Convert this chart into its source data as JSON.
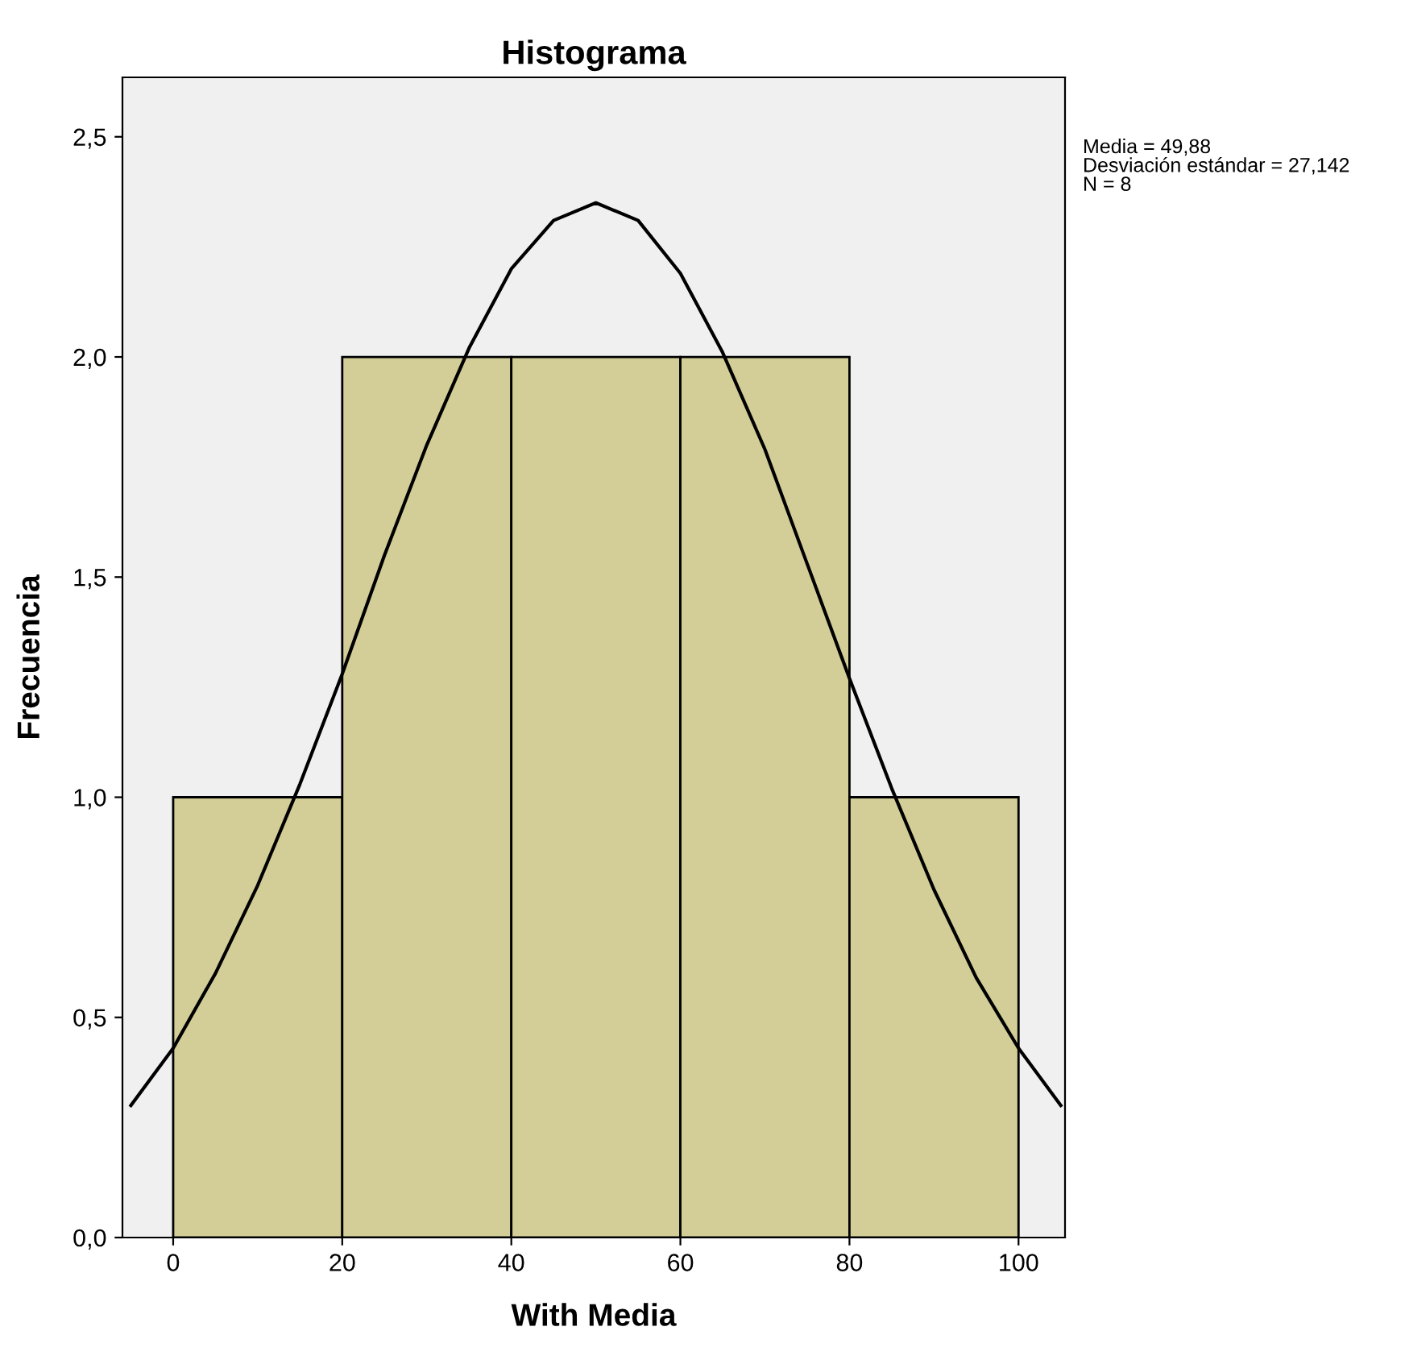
{
  "chart_data": {
    "type": "histogram",
    "title": "Histograma",
    "xlabel": "With Media",
    "ylabel": "Frecuencia",
    "bins": [
      0,
      20,
      40,
      60,
      80,
      100
    ],
    "values": [
      1,
      2,
      2,
      2,
      1
    ],
    "color": "#d3ce97",
    "series": [
      {
        "type": "line",
        "color": "#000000",
        "x": [
          -5,
          0,
          5,
          10,
          15,
          20,
          25,
          30,
          35,
          40,
          45,
          50,
          55,
          60,
          65,
          70,
          75,
          80,
          85,
          90,
          95,
          100,
          105
        ],
        "values": [
          0.3,
          0.43,
          0.6,
          0.8,
          1.03,
          1.28,
          1.55,
          1.8,
          2.02,
          2.2,
          2.31,
          2.35,
          2.31,
          2.19,
          2.01,
          1.79,
          1.53,
          1.27,
          1.02,
          0.79,
          0.59,
          0.43,
          0.3
        ]
      }
    ],
    "xlim": [
      -6,
      105.5
    ],
    "xticks": [
      0,
      20,
      40,
      60,
      80,
      100
    ],
    "ylim": [
      0,
      2.635
    ],
    "yticks": [
      {
        "value": 0,
        "label": "0,0"
      },
      {
        "value": 0.5,
        "label": "0,5"
      },
      {
        "value": 1,
        "label": "1,0"
      },
      {
        "value": 1.5,
        "label": "1,5"
      },
      {
        "value": 2,
        "label": "2,0"
      },
      {
        "value": 2.5,
        "label": "2,5"
      }
    ],
    "annotations": [
      "Media = 49,88",
      "Desviación estándar = 27,142",
      "N = 8"
    ],
    "grid": false
  }
}
